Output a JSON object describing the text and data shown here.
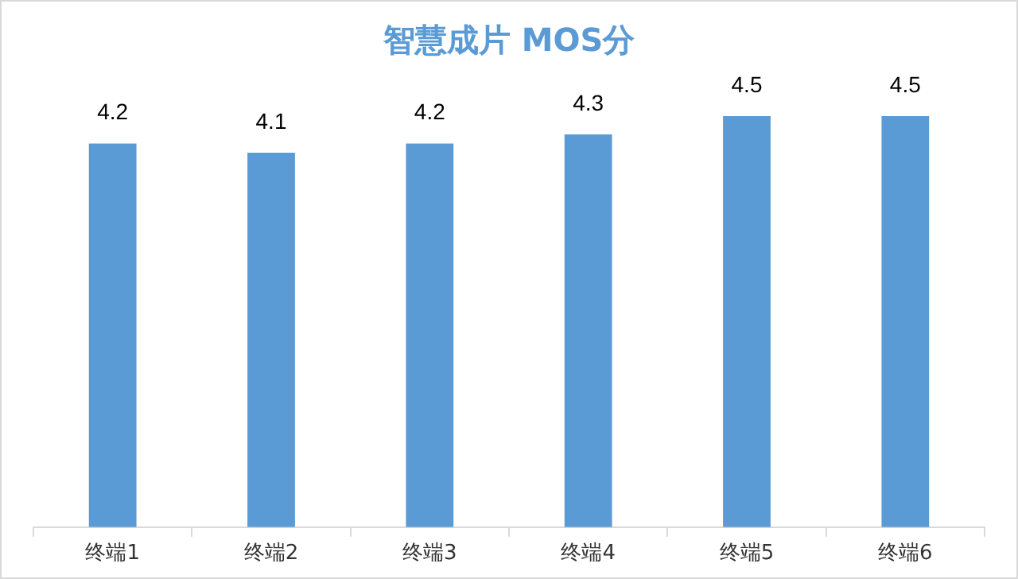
{
  "chart_data": {
    "type": "bar",
    "title": "智慧成片 MOS分",
    "categories": [
      "终端1",
      "终端2",
      "终端3",
      "终端4",
      "终端5",
      "终端6"
    ],
    "values": [
      4.2,
      4.1,
      4.2,
      4.3,
      4.5,
      4.5
    ],
    "color": "#5b9bd5",
    "data_labels": true,
    "tick_labels": "x",
    "grid": false,
    "legend": false
  }
}
